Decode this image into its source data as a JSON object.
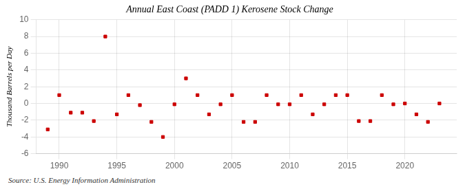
{
  "chart_data": {
    "type": "scatter",
    "title": "Annual East Coast (PADD 1) Kerosene Stock Change",
    "ylabel": "Thousand Barrels per Day",
    "annotations": [
      "Source: U.S. Energy Information Administration"
    ],
    "x": [
      1989,
      1990,
      1991,
      1992,
      1993,
      1994,
      1995,
      1996,
      1997,
      1998,
      1999,
      2000,
      2001,
      2002,
      2003,
      2004,
      2005,
      2006,
      2007,
      2008,
      2009,
      2010,
      2011,
      2012,
      2013,
      2014,
      2015,
      2016,
      2017,
      2018,
      2019,
      2020,
      2021,
      2022,
      2023
    ],
    "values": [
      -3.1,
      1.0,
      -1.1,
      -1.1,
      -2.1,
      8.0,
      -1.3,
      1.0,
      -0.2,
      -2.2,
      -4.0,
      -0.1,
      3.0,
      1.0,
      -1.3,
      -0.1,
      1.0,
      -2.2,
      -2.2,
      1.0,
      -0.1,
      -0.1,
      1.0,
      -1.3,
      -0.1,
      1.0,
      1.0,
      -2.1,
      -2.1,
      1.0,
      -0.1,
      0.0,
      -1.3,
      -2.2,
      0.0
    ],
    "color": "#cc0000",
    "marker": "square",
    "xlim": [
      1988.0,
      2024.5
    ],
    "xticks": [
      1990,
      1995,
      2000,
      2005,
      2010,
      2015,
      2020
    ],
    "ylim": [
      -6,
      10
    ],
    "yticks": [
      -6,
      -4,
      -2,
      0,
      2,
      4,
      6,
      8,
      10
    ],
    "grid": true
  }
}
